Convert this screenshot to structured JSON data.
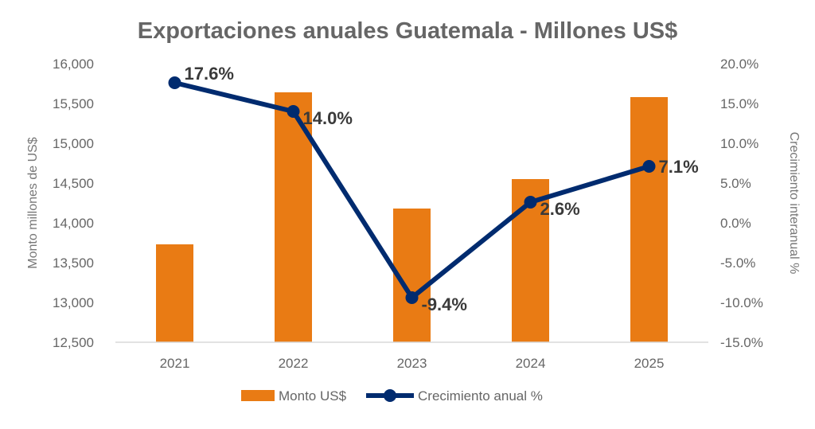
{
  "chart_data": {
    "type": "bar+line",
    "title": "Exportaciones anuales Guatemala - Millones US$",
    "categories": [
      "2021",
      "2022",
      "2023",
      "2024",
      "2025"
    ],
    "ylabel": "Monto millones de US$",
    "y2label": "Crecimiento interanual %",
    "ylim": [
      12500,
      16000
    ],
    "y2lim": [
      -15,
      20
    ],
    "yticks": [
      "12,500",
      "13,000",
      "13,500",
      "14,000",
      "14,500",
      "15,000",
      "15,500",
      "16,000"
    ],
    "y2ticks": [
      "-15.0%",
      "-10.0%",
      "-5.0%",
      "0.0%",
      "5.0%",
      "10.0%",
      "15.0%",
      "20.0%"
    ],
    "grid": false,
    "legend_position": "bottom",
    "series": [
      {
        "name": "Monto US$",
        "type": "bar",
        "axis": "left",
        "color": "#E97B14",
        "values": [
          13730,
          15640,
          14180,
          14550,
          15580
        ]
      },
      {
        "name": "Crecimiento anual %",
        "type": "line",
        "axis": "right",
        "color": "#002B6F",
        "values": [
          17.6,
          14.0,
          -9.4,
          2.6,
          7.1
        ],
        "labels": [
          "17.6%",
          "14.0%",
          "-9.4%",
          "2.6%",
          "7.1%"
        ]
      }
    ]
  }
}
